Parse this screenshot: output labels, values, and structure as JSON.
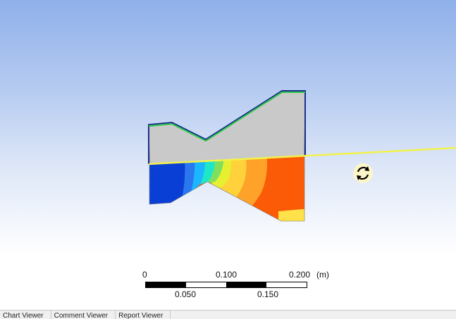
{
  "viewer": {
    "scale": {
      "top_ticks": [
        "0",
        "0.100",
        "0.200"
      ],
      "unit": "(m)",
      "bottom_ticks": [
        "0.050",
        "0.150"
      ]
    },
    "tabs": [
      "Chart Viewer",
      "Comment Viewer",
      "Report Viewer"
    ]
  },
  "colors": {
    "outline_green": "#2fc94a",
    "outline_blue": "#1a2f8a",
    "section_line": "#f2f24a",
    "geometry_gray": "#c8c8c8",
    "contour_low": "#0a3fd6",
    "contour_high": "#fb5a06"
  },
  "icons": {
    "cursor": "rotate-icon"
  }
}
